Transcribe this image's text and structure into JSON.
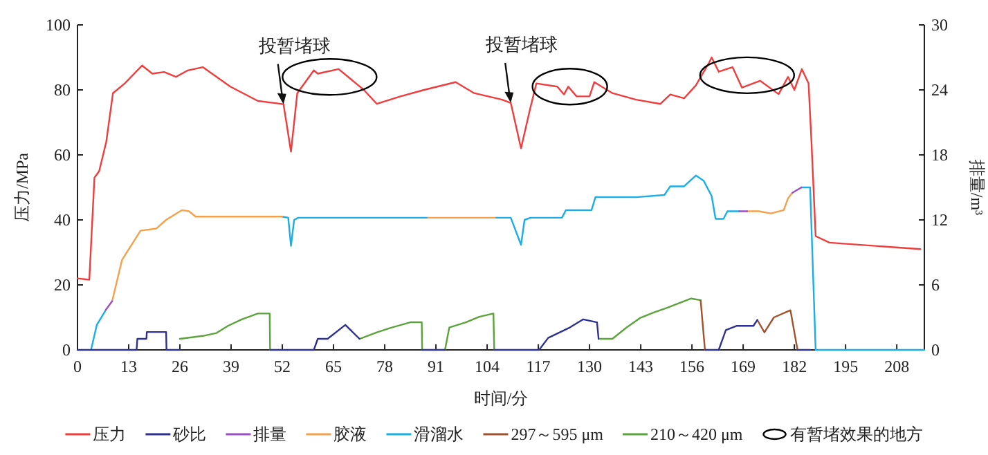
{
  "chart_data": {
    "type": "line",
    "xlabel": "时间/分",
    "ylabel": "压力/MPa",
    "y2label": "排量/m³",
    "xlim": [
      0,
      215
    ],
    "xticks": [
      0,
      13,
      26,
      39,
      52,
      65,
      78,
      91,
      104,
      117,
      130,
      143,
      156,
      169,
      182,
      195,
      208
    ],
    "ylim": [
      0,
      100
    ],
    "yticks": [
      0,
      20,
      40,
      60,
      80,
      100
    ],
    "y2lim": [
      0,
      30
    ],
    "y2ticks": [
      0,
      6,
      12,
      18,
      24,
      30
    ],
    "grid": false,
    "legend": "bottom",
    "line_style": "solid",
    "annotations": [
      {
        "text": "投暂堵球",
        "x": 52.3,
        "y": 75.6
      },
      {
        "text": "投暂堵球",
        "x": 110,
        "y": 76
      },
      "有暂堵效果的地方"
    ],
    "series": [
      {
        "name": "压力",
        "color": "#f03c3c",
        "x": [
          0,
          3,
          4.3,
          5.5,
          7.3,
          9,
          12,
          16.4,
          19,
          22,
          25,
          28,
          31.8,
          38.8,
          45.8,
          52.3,
          54.2,
          55.8,
          60,
          61,
          66.3,
          72.7,
          76,
          82,
          88,
          96,
          100.7,
          107.8,
          110,
          112.6,
          114.8,
          116.5,
          121.8,
          123.5,
          124.6,
          126.7,
          130,
          131.2,
          135.8,
          141.8,
          148,
          150.5,
          154,
          157,
          160.4,
          161,
          162.8,
          166.3,
          168.7,
          173.3,
          178,
          180.4,
          182,
          183.9,
          185.6,
          186.3,
          187.4,
          190.9,
          214
        ],
        "values": [
          22,
          21.6,
          53,
          55,
          64,
          79,
          82,
          87.5,
          85,
          85.5,
          84,
          86,
          87,
          81,
          76.6,
          75.6,
          61,
          79,
          86,
          85,
          86.4,
          80,
          75.7,
          78,
          80,
          82.4,
          79,
          77,
          76,
          62,
          73.6,
          82,
          81,
          78.6,
          81,
          78,
          78,
          82.4,
          79,
          77,
          75.7,
          78.6,
          77.4,
          81.4,
          88.5,
          90,
          85.6,
          87,
          80.7,
          82.8,
          78.7,
          84,
          80,
          86.4,
          82,
          65,
          35,
          33,
          31
        ]
      },
      {
        "name": "砂比",
        "color": "#2e3192",
        "x": [
          0,
          15,
          15.2,
          17.5,
          17.6,
          22.5,
          22.6,
          26,
          null,
          48.9,
          60,
          61,
          63.5,
          68,
          71.6,
          null,
          87.5,
          93.3,
          null,
          105.8,
          117.2,
          119.5,
          125,
          128.4,
          131.9,
          132.3,
          null,
          159.4,
          162.8,
          164.6,
          167.4,
          171.6,
          172.6,
          null,
          182.8,
          186
        ],
        "values": [
          0,
          0,
          3.4,
          3.4,
          5.5,
          5.5,
          0,
          0,
          null,
          0,
          0,
          3.4,
          3.4,
          7.7,
          3.4,
          null,
          0,
          0,
          null,
          0,
          0,
          3.7,
          6.9,
          9.4,
          8.5,
          3.4,
          null,
          0,
          0,
          6.1,
          7.4,
          7.4,
          9.2,
          null,
          0,
          0
        ]
      },
      {
        "name": "排量",
        "color": "#9b4fc4",
        "axis": "y2",
        "x": [
          7.2,
          8.8,
          null,
          168,
          170,
          null,
          181.5,
          183.8
        ],
        "values": [
          3.7,
          4.5,
          null,
          12.8,
          12.8,
          null,
          14.5,
          15
        ]
      },
      {
        "name": "胶液",
        "color": "#f5a04a",
        "axis": "y2",
        "x": [
          8.8,
          11.3,
          16,
          20,
          22.5,
          26.5,
          28.3,
          30,
          40,
          50,
          52,
          null,
          89,
          95,
          100,
          106,
          null,
          170,
          173,
          176,
          179.3,
          180.4,
          181.5
        ],
        "values": [
          4.5,
          8.3,
          11,
          11.2,
          12,
          12.9,
          12.8,
          12.3,
          12.3,
          12.3,
          12.3,
          null,
          12.2,
          12.2,
          12.2,
          12.2,
          null,
          12.8,
          12.8,
          12.6,
          12.9,
          14,
          14.5
        ]
      },
      {
        "name": "滑溜水",
        "color": "#1aaee8",
        "axis": "y2",
        "x": [
          3.5,
          4.9,
          7.2,
          null,
          52,
          53.5,
          54.2,
          55,
          56,
          70,
          89,
          null,
          106,
          110,
          112.6,
          113.5,
          115,
          123,
          124,
          130.5,
          131.5,
          141.8,
          149,
          150.5,
          154,
          157,
          159,
          161,
          162,
          164,
          165,
          168,
          null,
          183.8,
          186,
          187.4,
          215
        ],
        "values": [
          0.1,
          2.3,
          3.7,
          null,
          12.3,
          12.2,
          9.6,
          12,
          12.2,
          12.2,
          12.2,
          null,
          12.2,
          12.2,
          9.7,
          12,
          12.2,
          12.2,
          12.9,
          12.9,
          14.1,
          14.1,
          14.3,
          15.1,
          15.1,
          16.1,
          15.6,
          14.2,
          12.1,
          12.1,
          12.8,
          12.8,
          null,
          15,
          15,
          0,
          0
        ]
      },
      {
        "name": "297～595 μm",
        "color": "#a0522d",
        "x": [
          158.2,
          159.3,
          null,
          172.6,
          174.4,
          176.8,
          181,
          182.8
        ],
        "values": [
          15.3,
          0,
          null,
          9.2,
          5.4,
          10,
          12.2,
          0
        ]
      },
      {
        "name": "210～420 μm",
        "color": "#5ba33b",
        "x": [
          26,
          31.8,
          35.3,
          38.2,
          41.7,
          45.8,
          48.8,
          48.9,
          null,
          71.6,
          76,
          79.5,
          84.5,
          87.4,
          87.5,
          null,
          93.3,
          94.4,
          98.6,
          102,
          105.6,
          105.8,
          null,
          132.3,
          135.8,
          139.3,
          142.8,
          146.3,
          149.8,
          155.8,
          158.2
        ],
        "values": [
          3.4,
          4.3,
          5.2,
          7.4,
          9.4,
          11.2,
          11.2,
          0,
          null,
          3.4,
          5.4,
          6.8,
          8.5,
          8.5,
          0,
          null,
          0,
          6.9,
          8.5,
          10.2,
          11.2,
          0,
          null,
          3.4,
          3.4,
          6.8,
          9.8,
          11.5,
          13,
          15.8,
          15.3
        ]
      }
    ]
  }
}
